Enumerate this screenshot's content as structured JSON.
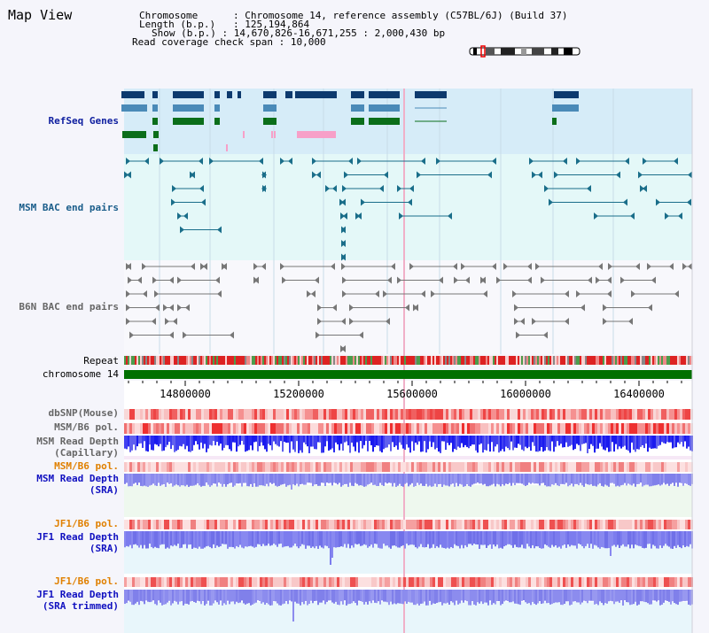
{
  "view_title": "Map View",
  "info": {
    "chromosome_label": "Chromosome",
    "chromosome_value": "Chromosome 14, reference assembly (C57BL/6J) (Build 37)",
    "length_label": "Length (b.p.)",
    "length_value": "125,194,864",
    "show_label": "Show (b.p.)",
    "show_value": "14,670,826-16,671,255 : 2,000,430 bp",
    "coverage_label": "Read coverage check span",
    "coverage_value": "10,000"
  },
  "tracks": {
    "refseq": "RefSeq Genes",
    "msm_bac": "MSM BAC end pairs",
    "b6n_bac": "B6N BAC end pairs",
    "repeat": "Repeat",
    "chromosome": "chromosome 14",
    "dbsnp": "dbSNP(Mouse)",
    "msm_b6_pol_1": "MSM/B6 pol.",
    "msm_read_depth_cap_1": "MSM Read Depth",
    "msm_read_depth_cap_2": "(Capillary)",
    "msm_b6_pol_2": "MSM/B6 pol.",
    "msm_read_depth_sra_1": "MSM Read Depth",
    "msm_read_depth_sra_2": "(SRA)",
    "jf1_b6_pol_1": "JF1/B6 pol.",
    "jf1_read_depth_sra_1": "JF1 Read Depth",
    "jf1_read_depth_sra_2": "(SRA)",
    "jf1_b6_pol_2": "JF1/B6 pol.",
    "jf1_read_depth_trim_1": "JF1 Read Depth",
    "jf1_read_depth_trim_2": "(SRA trimmed)"
  },
  "axis": {
    "ticks": [
      "14800000",
      "15200000",
      "15600000",
      "16000000",
      "16400000"
    ]
  },
  "colors": {
    "refseq_bg": "#d6ecf8",
    "msm_bg": "#e4f8f8",
    "gene_dark": "#0d3a6e",
    "gene_mid": "#4a8ab8",
    "gene_green": "#0b6e1a",
    "gene_pink": "#f7a0c8",
    "bac_teal": "#1a6e8a",
    "bac_gray": "#666666",
    "chromosome_bar": "#007000",
    "repeat_red": "#dd2222",
    "depth_blue": "#1a1aee",
    "depth_light": "#8080ee",
    "pol_pink": "#f5a0a0",
    "cursor_pink": "#f0b0c8"
  }
}
